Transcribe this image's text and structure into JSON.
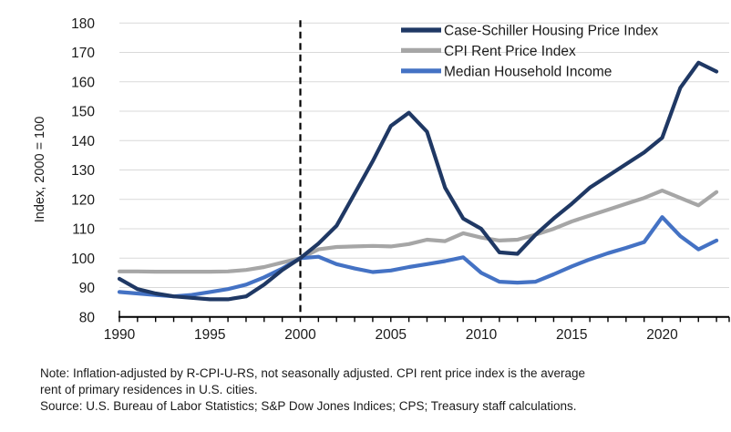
{
  "chart_data": {
    "type": "line",
    "title": "",
    "xlabel": "",
    "ylabel": "Index, 2000 = 100",
    "x": [
      1990,
      1991,
      1992,
      1993,
      1994,
      1995,
      1996,
      1997,
      1998,
      1999,
      2000,
      2001,
      2002,
      2003,
      2004,
      2005,
      2006,
      2007,
      2008,
      2009,
      2010,
      2011,
      2012,
      2013,
      2014,
      2015,
      2016,
      2017,
      2018,
      2019,
      2020,
      2021,
      2022,
      2023
    ],
    "x_domain": [
      1990,
      2023.7
    ],
    "x_ticks": [
      1990,
      1995,
      2000,
      2005,
      2010,
      2015,
      2020
    ],
    "ylim": [
      80,
      180
    ],
    "y_ticks": [
      80,
      90,
      100,
      110,
      120,
      130,
      140,
      150,
      160,
      170,
      180
    ],
    "grid": "horizontal-only",
    "legend_position": "top-right-inside",
    "reference_line": {
      "x": 2000,
      "style": "dashed",
      "color": "#000000"
    },
    "series": [
      {
        "name": "Case-Schiller Housing Price Index",
        "color": "#1F3864",
        "values": [
          93,
          89.5,
          88,
          87,
          86.5,
          86,
          86,
          87,
          91,
          96,
          100,
          105,
          111,
          122,
          133,
          145,
          149.5,
          143,
          124,
          113.5,
          110,
          102,
          101.5,
          108,
          113.5,
          118.5,
          124,
          128,
          132,
          136,
          141,
          158,
          166.5,
          163.5
        ]
      },
      {
        "name": "CPI Rent Price Index",
        "color": "#A6A6A6",
        "values": [
          95.5,
          95.5,
          95.4,
          95.4,
          95.4,
          95.4,
          95.5,
          96,
          97,
          98.5,
          100,
          103,
          103.8,
          104,
          104.2,
          104,
          104.8,
          106.3,
          105.8,
          108.5,
          107,
          106,
          106.3,
          108,
          110,
          112.5,
          114.5,
          116.5,
          118.5,
          120.5,
          123,
          120.5,
          118,
          122.5
        ]
      },
      {
        "name": "Median Household Income",
        "color": "#4472C4",
        "values": [
          88.5,
          88,
          87.5,
          87,
          87.5,
          88.5,
          89.5,
          91,
          93.5,
          96.5,
          100,
          100.5,
          98,
          96.5,
          95.3,
          95.8,
          97,
          98,
          99,
          100.3,
          95,
          92,
          91.7,
          92,
          94.5,
          97.2,
          99.6,
          101.7,
          103.5,
          105.5,
          114,
          107.5,
          103,
          106
        ]
      }
    ]
  },
  "footer": {
    "note_line1": "Note: Inflation-adjusted by R-CPI-U-RS, not seasonally adjusted. CPI rent price index is the average",
    "note_line2": "rent of primary residences in U.S. cities.",
    "source": "Source: U.S. Bureau of Labor Statistics; S&P Dow Jones Indices; CPS; Treasury staff calculations."
  },
  "colors": {
    "gridline": "#D9D9D9",
    "axis": "#000000",
    "text": "#1A1A1A"
  }
}
